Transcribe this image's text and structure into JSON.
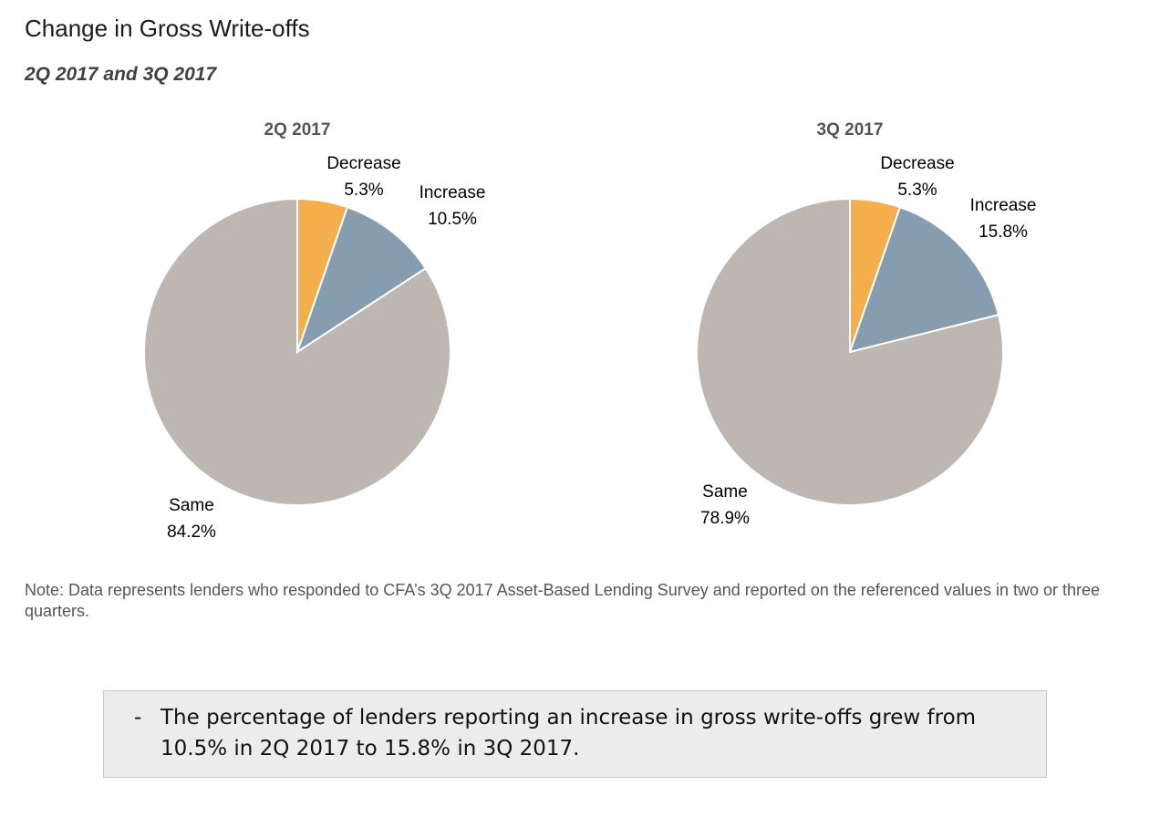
{
  "title": "Change in Gross Write-offs",
  "subtitle": "2Q 2017 and 3Q 2017",
  "chart_data": [
    {
      "type": "pie",
      "title": "2Q 2017",
      "slices": [
        {
          "name": "Decrease",
          "value": 5.3,
          "label": "5.3%",
          "color": "#F5AE4C"
        },
        {
          "name": "Increase",
          "value": 10.5,
          "label": "10.5%",
          "color": "#869DB0"
        },
        {
          "name": "Same",
          "value": 84.2,
          "label": "84.2%",
          "color": "#BDB6B1"
        }
      ]
    },
    {
      "type": "pie",
      "title": "3Q 2017",
      "slices": [
        {
          "name": "Decrease",
          "value": 5.3,
          "label": "5.3%",
          "color": "#F5AE4C"
        },
        {
          "name": "Increase",
          "value": 15.8,
          "label": "15.8%",
          "color": "#869DB0"
        },
        {
          "name": "Same",
          "value": 78.9,
          "label": "78.9%",
          "color": "#BDB6B1"
        }
      ]
    }
  ],
  "note": "Note: Data represents lenders who responded to CFA’s 3Q 2017 Asset-Based Lending Survey and reported on the referenced values in two or three quarters.",
  "callout": {
    "bullet": "-",
    "text": "The percentage of lenders reporting an increase in gross write-offs grew from 10.5% in 2Q 2017 to 15.8% in 3Q 2017."
  }
}
